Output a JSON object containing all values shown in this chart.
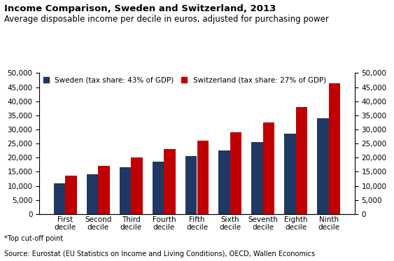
{
  "title": "Income Comparison, Sweden and Switzerland, 2013",
  "subtitle": "Average disposable income per decile in euros, adjusted for purchasing power",
  "footnote": "*Top cut-off point",
  "source": "Source: Eurostat (EU Statistics on Income and Living Conditions), OECD, Wallen Economics",
  "categories": [
    "First\ndecile",
    "Second\ndecile",
    "Third\ndecile",
    "Fourth\ndecile",
    "Fifth\ndecile",
    "Sixth\ndecile",
    "Seventh\ndecile",
    "Eighth\ndecile",
    "Ninth\ndecile"
  ],
  "sweden_values": [
    11000,
    14000,
    16500,
    18500,
    20500,
    22500,
    25500,
    28500,
    34000
  ],
  "switzerland_values": [
    13500,
    17000,
    20000,
    23000,
    26000,
    29000,
    32500,
    38000,
    46500
  ],
  "sweden_color": "#1F3864",
  "switzerland_color": "#C00000",
  "legend_sweden": "Sweden (tax share: 43% of GDP)",
  "legend_switzerland": "Switzerland (tax share: 27% of GDP)",
  "ylim": [
    0,
    50000
  ],
  "yticks": [
    0,
    5000,
    10000,
    15000,
    20000,
    25000,
    30000,
    35000,
    40000,
    45000,
    50000
  ],
  "background_color": "#FFFFFF",
  "title_fontsize": 9.5,
  "subtitle_fontsize": 8.5,
  "tick_fontsize": 7.5,
  "legend_fontsize": 7.5,
  "footnote_fontsize": 7.0
}
